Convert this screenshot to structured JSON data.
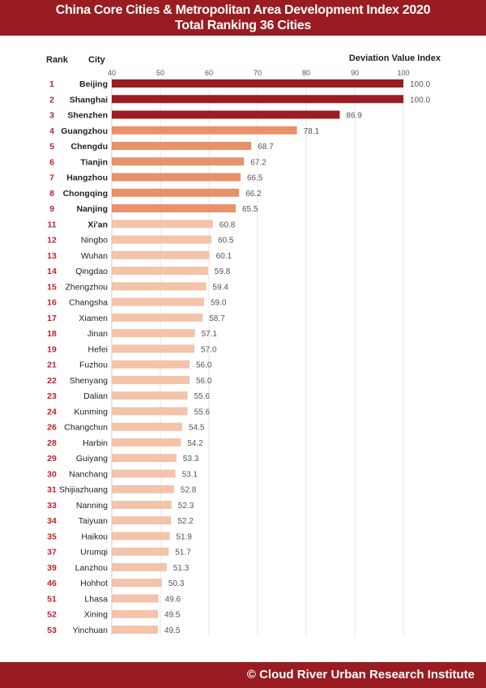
{
  "header": {
    "title": "China Core Cities & Metropolitan Area Development Index 2020",
    "subtitle": "Total Ranking 36 Cities"
  },
  "footer": {
    "credit": "© Cloud River Urban Research Institute"
  },
  "colors": {
    "banner": "#981c21",
    "top3": "#9b1c22",
    "top10": "#e8916b",
    "rest": "#f3c3aa",
    "rank": "#c0202a"
  },
  "chart_data": {
    "type": "bar",
    "orientation": "horizontal",
    "column_headers": {
      "rank": "Rank",
      "city": "City",
      "value": "Deviation Value Index"
    },
    "xlim": [
      40,
      100
    ],
    "xticks": [
      40,
      50,
      60,
      70,
      80,
      90,
      100
    ],
    "rows": [
      {
        "rank": "1",
        "city": "Beijing",
        "value": 100.0,
        "label": "100.0",
        "tier": "top3"
      },
      {
        "rank": "2",
        "city": "Shanghai",
        "value": 100.0,
        "label": "100.0",
        "tier": "top3"
      },
      {
        "rank": "3",
        "city": "Shenzhen",
        "value": 86.9,
        "label": "86.9",
        "tier": "top3"
      },
      {
        "rank": "4",
        "city": "Guangzhou",
        "value": 78.1,
        "label": "78.1",
        "tier": "top10"
      },
      {
        "rank": "5",
        "city": "Chengdu",
        "value": 68.7,
        "label": "68.7",
        "tier": "top10"
      },
      {
        "rank": "6",
        "city": "Tianjin",
        "value": 67.2,
        "label": "67.2",
        "tier": "top10"
      },
      {
        "rank": "7",
        "city": "Hangzhou",
        "value": 66.5,
        "label": "66.5",
        "tier": "top10"
      },
      {
        "rank": "8",
        "city": "Chongqing",
        "value": 66.2,
        "label": "66.2",
        "tier": "top10"
      },
      {
        "rank": "9",
        "city": "Nanjing",
        "value": 65.5,
        "label": "65.5",
        "tier": "top10"
      },
      {
        "rank": "11",
        "city": "Xi'an",
        "value": 60.8,
        "label": "60.8",
        "tier": "rest",
        "bold": true
      },
      {
        "rank": "12",
        "city": "Ningbo",
        "value": 60.5,
        "label": "60.5",
        "tier": "rest"
      },
      {
        "rank": "13",
        "city": "Wuhan",
        "value": 60.1,
        "label": "60.1",
        "tier": "rest"
      },
      {
        "rank": "14",
        "city": "Qingdao",
        "value": 59.8,
        "label": "59.8",
        "tier": "rest"
      },
      {
        "rank": "15",
        "city": "Zhengzhou",
        "value": 59.4,
        "label": "59.4",
        "tier": "rest"
      },
      {
        "rank": "16",
        "city": "Changsha",
        "value": 59.0,
        "label": "59.0",
        "tier": "rest"
      },
      {
        "rank": "17",
        "city": "Xiamen",
        "value": 58.7,
        "label": "58.7",
        "tier": "rest"
      },
      {
        "rank": "18",
        "city": "Jinan",
        "value": 57.1,
        "label": "57.1",
        "tier": "rest"
      },
      {
        "rank": "19",
        "city": "Hefei",
        "value": 57.0,
        "label": "57.0",
        "tier": "rest"
      },
      {
        "rank": "21",
        "city": "Fuzhou",
        "value": 56.0,
        "label": "56.0",
        "tier": "rest"
      },
      {
        "rank": "22",
        "city": "Shenyang",
        "value": 56.0,
        "label": "56.0",
        "tier": "rest"
      },
      {
        "rank": "23",
        "city": "Dalian",
        "value": 55.6,
        "label": "55.6",
        "tier": "rest"
      },
      {
        "rank": "24",
        "city": "Kunming",
        "value": 55.6,
        "label": "55.6",
        "tier": "rest"
      },
      {
        "rank": "26",
        "city": "Changchun",
        "value": 54.5,
        "label": "54.5",
        "tier": "rest"
      },
      {
        "rank": "28",
        "city": "Harbin",
        "value": 54.2,
        "label": "54.2",
        "tier": "rest"
      },
      {
        "rank": "29",
        "city": "Guiyang",
        "value": 53.3,
        "label": "53.3",
        "tier": "rest"
      },
      {
        "rank": "30",
        "city": "Nanchang",
        "value": 53.1,
        "label": "53.1",
        "tier": "rest"
      },
      {
        "rank": "31",
        "city": "Shijiazhuang",
        "value": 52.8,
        "label": "52.8",
        "tier": "rest"
      },
      {
        "rank": "33",
        "city": "Nanning",
        "value": 52.3,
        "label": "52.3",
        "tier": "rest"
      },
      {
        "rank": "34",
        "city": "Taiyuan",
        "value": 52.2,
        "label": "52.2",
        "tier": "rest"
      },
      {
        "rank": "35",
        "city": "Haikou",
        "value": 51.9,
        "label": "51.9",
        "tier": "rest"
      },
      {
        "rank": "37",
        "city": "Urumqi",
        "value": 51.7,
        "label": "51.7",
        "tier": "rest"
      },
      {
        "rank": "39",
        "city": "Lanzhou",
        "value": 51.3,
        "label": "51.3",
        "tier": "rest"
      },
      {
        "rank": "46",
        "city": "Hohhot",
        "value": 50.3,
        "label": "50.3",
        "tier": "rest"
      },
      {
        "rank": "51",
        "city": "Lhasa",
        "value": 49.6,
        "label": "49.6",
        "tier": "rest"
      },
      {
        "rank": "52",
        "city": "Xining",
        "value": 49.5,
        "label": "49.5",
        "tier": "rest"
      },
      {
        "rank": "53",
        "city": "Yinchuan",
        "value": 49.5,
        "label": "49.5",
        "tier": "rest"
      }
    ]
  }
}
